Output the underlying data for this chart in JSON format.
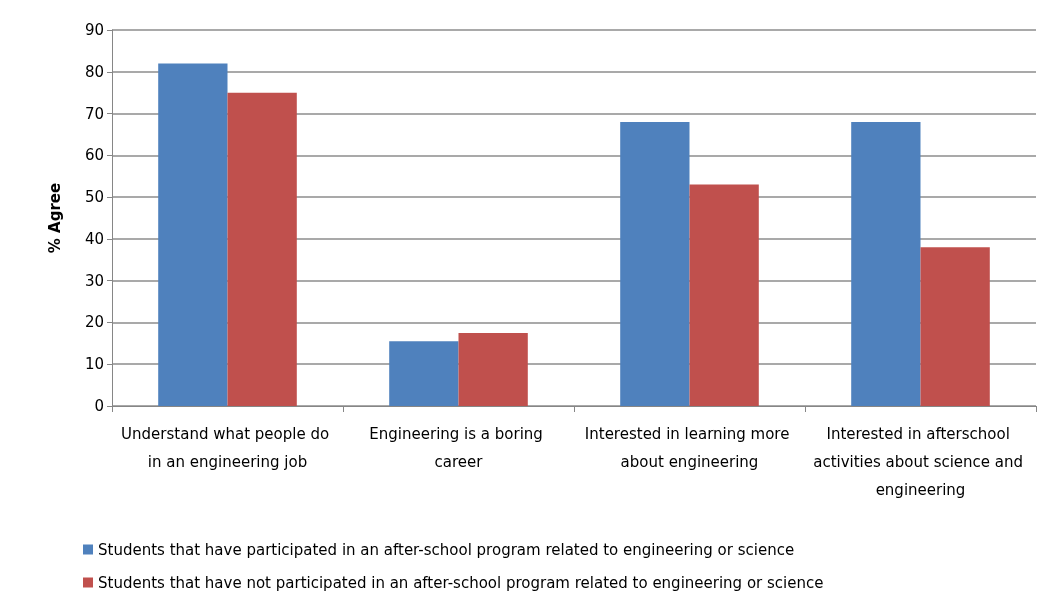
{
  "chart_data": {
    "type": "bar",
    "ylabel": "% Agree",
    "categories": [
      "Understand what people do in an engineering job",
      "Engineering is a boring career",
      "Interested in learning more about engineering",
      "Interested in afterschool activities about science and engineering"
    ],
    "series": [
      {
        "name": "Students that have participated in an after-school program related to engineering or science",
        "color": "#4f81bd",
        "values": [
          82,
          15.5,
          68,
          68
        ]
      },
      {
        "name": "Students that have not participated in an after-school program related to engineering or science",
        "color": "#c0504d",
        "values": [
          75,
          17.5,
          53,
          38
        ]
      }
    ],
    "ylim": [
      0,
      90
    ],
    "yticks": [
      0,
      10,
      20,
      30,
      40,
      50,
      60,
      70,
      80,
      90
    ],
    "grid": "y",
    "legend": "bottom"
  }
}
